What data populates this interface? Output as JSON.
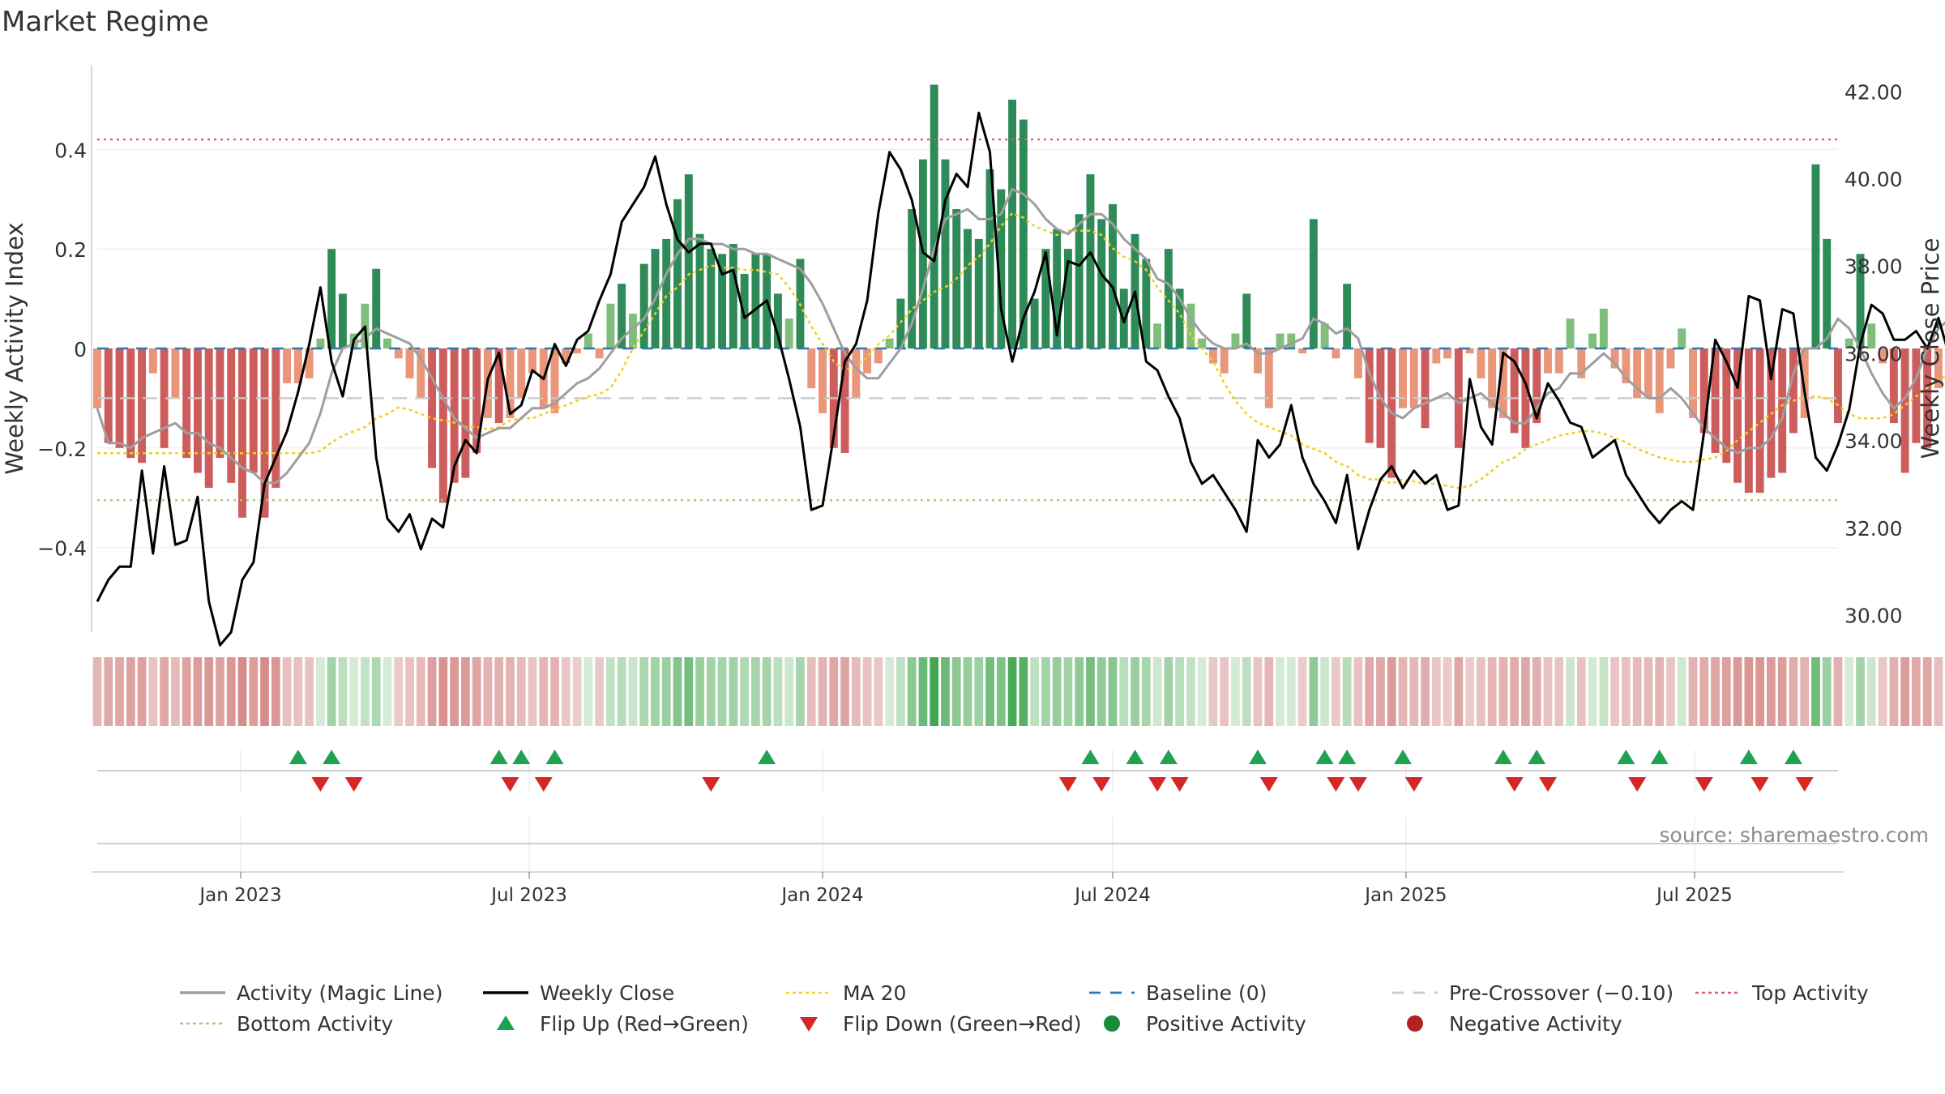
{
  "chart_data": {
    "type": "bar",
    "title": "Market Regime",
    "ylabel": "Weekly Activity Index",
    "ylabel_right": "Weekly Close Price",
    "ylim": [
      -0.57,
      0.57
    ],
    "ylim_right": [
      29.6,
      42.6
    ],
    "yticks": [
      -0.4,
      -0.2,
      0,
      0.2,
      0.4
    ],
    "yticks_right": [
      30,
      32,
      34,
      36,
      38,
      40,
      42
    ],
    "ytick_labels": [
      "−0.4",
      "−0.2",
      "0",
      "0.2",
      "0.4"
    ],
    "ytick_labels_right": [
      "30.00",
      "32.00",
      "34.00",
      "36.00",
      "38.00",
      "40.00",
      "42.00"
    ],
    "x_range": [
      "2022-10-03",
      "2025-09-29"
    ],
    "x_ticks": [
      {
        "date": "2023-01-01",
        "label": "Jan 2023"
      },
      {
        "date": "2023-07-01",
        "label": "Jul 2023"
      },
      {
        "date": "2024-01-01",
        "label": "Jan 2024"
      },
      {
        "date": "2024-07-01",
        "label": "Jul 2024"
      },
      {
        "date": "2025-01-01",
        "label": "Jan 2025"
      },
      {
        "date": "2025-07-01",
        "label": "Jul 2025"
      }
    ],
    "start_date": "2022-10-03",
    "week_step_days": 7,
    "activity_index": [
      -0.12,
      -0.19,
      -0.2,
      -0.22,
      -0.23,
      -0.05,
      -0.2,
      -0.1,
      -0.22,
      -0.25,
      -0.28,
      -0.22,
      -0.27,
      -0.34,
      -0.25,
      -0.34,
      -0.28,
      -0.07,
      -0.07,
      -0.06,
      0.02,
      0.2,
      0.11,
      0.03,
      0.09,
      0.16,
      0.02,
      -0.02,
      -0.06,
      -0.1,
      -0.24,
      -0.31,
      -0.27,
      -0.26,
      -0.21,
      -0.14,
      -0.15,
      -0.14,
      -0.1,
      -0.05,
      -0.12,
      -0.13,
      -0.03,
      -0.01,
      0.03,
      -0.02,
      0.09,
      0.13,
      0.07,
      0.17,
      0.2,
      0.22,
      0.3,
      0.35,
      0.23,
      0.2,
      0.19,
      0.21,
      0.15,
      0.19,
      0.19,
      0.11,
      0.06,
      0.18,
      -0.08,
      -0.13,
      -0.2,
      -0.21,
      -0.1,
      -0.05,
      -0.03,
      0.02,
      0.1,
      0.28,
      0.38,
      0.53,
      0.38,
      0.28,
      0.24,
      0.22,
      0.36,
      0.32,
      0.5,
      0.46,
      0.1,
      0.2,
      0.24,
      0.2,
      0.27,
      0.35,
      0.26,
      0.29,
      0.12,
      0.23,
      0.18,
      0.05,
      0.2,
      0.12,
      0.09,
      0.02,
      -0.03,
      -0.05,
      0.03,
      0.11,
      -0.05,
      -0.12,
      0.03,
      0.03,
      -0.01,
      0.26,
      0.05,
      -0.02,
      0.13,
      -0.06,
      -0.19,
      -0.2,
      -0.26,
      -0.12,
      -0.12,
      -0.16,
      -0.03,
      -0.02,
      -0.2,
      -0.01,
      -0.06,
      -0.12,
      -0.14,
      -0.17,
      -0.2,
      -0.15,
      -0.05,
      -0.05,
      0.06,
      -0.06,
      0.03,
      0.08,
      -0.04,
      -0.07,
      -0.1,
      -0.1,
      -0.13,
      -0.04,
      0.04,
      -0.14,
      -0.17,
      -0.21,
      -0.23,
      -0.27,
      -0.29,
      -0.29,
      -0.26,
      -0.25,
      -0.17,
      -0.14,
      0.37,
      0.22,
      -0.15,
      0.02,
      0.19,
      0.05,
      -0.03,
      -0.15,
      -0.25,
      -0.19,
      -0.2,
      -0.08,
      0.23,
      0.15,
      0.07,
      0.04,
      0.08,
      0.03,
      0.19,
      -0.05,
      0.19,
      -0.05,
      -0.07,
      0.03,
      -0.1,
      -0.12,
      -0.04,
      -0.1,
      -0.11,
      -0.23,
      -0.31,
      -0.17
    ],
    "magic_line": [
      -0.12,
      -0.19,
      -0.19,
      -0.2,
      -0.18,
      -0.17,
      -0.16,
      -0.15,
      -0.17,
      -0.17,
      -0.19,
      -0.2,
      -0.22,
      -0.24,
      -0.25,
      -0.27,
      -0.27,
      -0.25,
      -0.22,
      -0.19,
      -0.13,
      -0.05,
      0.0,
      0.01,
      0.02,
      0.04,
      0.03,
      0.02,
      0.01,
      -0.02,
      -0.06,
      -0.1,
      -0.14,
      -0.16,
      -0.18,
      -0.17,
      -0.16,
      -0.16,
      -0.14,
      -0.12,
      -0.12,
      -0.11,
      -0.09,
      -0.07,
      -0.06,
      -0.04,
      -0.01,
      0.02,
      0.04,
      0.06,
      0.1,
      0.15,
      0.19,
      0.22,
      0.22,
      0.21,
      0.21,
      0.2,
      0.2,
      0.19,
      0.19,
      0.18,
      0.17,
      0.16,
      0.13,
      0.09,
      0.04,
      -0.01,
      -0.04,
      -0.06,
      -0.06,
      -0.03,
      0.0,
      0.05,
      0.12,
      0.2,
      0.26,
      0.27,
      0.28,
      0.26,
      0.26,
      0.27,
      0.32,
      0.31,
      0.29,
      0.26,
      0.24,
      0.23,
      0.25,
      0.27,
      0.27,
      0.25,
      0.22,
      0.2,
      0.18,
      0.14,
      0.13,
      0.1,
      0.06,
      0.03,
      0.01,
      0.0,
      0.0,
      0.01,
      -0.01,
      -0.01,
      0.0,
      0.01,
      0.02,
      0.06,
      0.05,
      0.03,
      0.04,
      0.02,
      -0.05,
      -0.1,
      -0.13,
      -0.14,
      -0.12,
      -0.11,
      -0.1,
      -0.09,
      -0.11,
      -0.1,
      -0.09,
      -0.11,
      -0.13,
      -0.15,
      -0.15,
      -0.12,
      -0.09,
      -0.08,
      -0.05,
      -0.05,
      -0.03,
      -0.01,
      -0.03,
      -0.06,
      -0.08,
      -0.1,
      -0.1,
      -0.08,
      -0.1,
      -0.13,
      -0.16,
      -0.18,
      -0.2,
      -0.21,
      -0.2,
      -0.2,
      -0.18,
      -0.14,
      -0.05,
      0.0,
      0.0,
      0.02,
      0.06,
      0.04,
      0.0,
      -0.05,
      -0.09,
      -0.12,
      -0.1,
      -0.06,
      0.0,
      0.04,
      0.06,
      0.05,
      0.05,
      0.06,
      0.05,
      0.07,
      0.04,
      0.02,
      0.0,
      -0.02,
      -0.04,
      -0.06,
      -0.06,
      -0.07,
      -0.09,
      -0.13,
      -0.18,
      -0.21
    ],
    "weekly_close": [
      30.3,
      30.8,
      31.1,
      31.1,
      33.3,
      31.4,
      33.4,
      31.6,
      31.7,
      32.7,
      30.3,
      29.3,
      29.6,
      30.8,
      31.2,
      33,
      33.6,
      34.2,
      35.1,
      36.2,
      37.5,
      35.8,
      35,
      36.3,
      36.6,
      33.6,
      32.2,
      31.9,
      32.3,
      31.5,
      32.2,
      32,
      33.4,
      34,
      33.7,
      35.4,
      36,
      34.6,
      34.8,
      35.6,
      35.4,
      36.2,
      35.7,
      36.3,
      36.5,
      37.2,
      37.8,
      39,
      39.4,
      39.8,
      40.5,
      39.4,
      38.6,
      38.3,
      38.5,
      38.5,
      37.8,
      37.9,
      36.8,
      37,
      37.2,
      36.4,
      35.4,
      34.3,
      32.4,
      32.5,
      34.1,
      35.8,
      36.2,
      37.2,
      39.2,
      40.6,
      40.2,
      39.5,
      38.3,
      38.1,
      39.5,
      40.1,
      39.8,
      41.5,
      40.6,
      37,
      35.8,
      36.8,
      37.4,
      38.3,
      36.4,
      38.1,
      38,
      38.3,
      37.8,
      37.5,
      36.7,
      37.4,
      35.8,
      35.6,
      35,
      34.5,
      33.5,
      33,
      33.2,
      32.8,
      32.4,
      31.9,
      34,
      33.6,
      33.9,
      34.8,
      33.6,
      33,
      32.6,
      32.1,
      33.2,
      31.5,
      32.4,
      33.1,
      33.4,
      32.9,
      33.3,
      33,
      33.2,
      32.4,
      32.5,
      35.4,
      34.3,
      33.9,
      36,
      35.8,
      35.3,
      34.5,
      35.3,
      34.9,
      34.4,
      34.3,
      33.6,
      33.8,
      34,
      33.2,
      32.8,
      32.4,
      32.1,
      32.4,
      32.6,
      32.4,
      34.2,
      36.3,
      35.8,
      35.2,
      37.3,
      37.2,
      35.4,
      37,
      36.9,
      35.1,
      33.6,
      33.3,
      33.9,
      34.7,
      36.2,
      37.1,
      36.9,
      36.3,
      36.3,
      36.5,
      36.1,
      36.8,
      35.9,
      37.5,
      34.8,
      33.4,
      33,
      34.9,
      35.4,
      34.7,
      35.3,
      36.1,
      35.8,
      35.4,
      34.6,
      33.6,
      33.7
    ],
    "ma20": [
      33.7,
      33.7,
      33.7,
      33.7,
      33.7,
      33.7,
      33.7,
      33.7,
      33.7,
      33.7,
      33.7,
      33.7,
      33.7,
      33.7,
      33.7,
      33.7,
      33.7,
      33.7,
      33.7,
      33.7,
      33.75,
      33.95,
      34.1,
      34.2,
      34.3,
      34.5,
      34.6,
      34.75,
      34.7,
      34.6,
      34.5,
      34.45,
      34.4,
      34.3,
      34.3,
      34.25,
      34.3,
      34.45,
      34.5,
      34.5,
      34.6,
      34.7,
      34.8,
      34.9,
      35,
      35.05,
      35.2,
      35.6,
      36.1,
      36.5,
      36.9,
      37.3,
      37.5,
      37.8,
      37.9,
      38,
      37.95,
      37.95,
      37.9,
      37.9,
      37.85,
      37.8,
      37.5,
      37.1,
      36.6,
      36.2,
      35.8,
      35.6,
      35.7,
      35.9,
      36.2,
      36.4,
      36.7,
      37,
      37.2,
      37.4,
      37.5,
      37.7,
      38,
      38.2,
      38.5,
      38.9,
      39.2,
      39.1,
      38.9,
      38.8,
      38.7,
      38.8,
      38.8,
      38.8,
      38.7,
      38.4,
      38.2,
      38.1,
      37.9,
      37.5,
      37.2,
      36.9,
      36.4,
      36.1,
      35.8,
      35.3,
      34.9,
      34.6,
      34.4,
      34.3,
      34.2,
      34.1,
      33.9,
      33.8,
      33.7,
      33.5,
      33.4,
      33.2,
      33.1,
      33.1,
      33.0,
      33.1,
      33.05,
      33.0,
      33.0,
      32.95,
      32.9,
      32.95,
      33.1,
      33.3,
      33.5,
      33.6,
      33.8,
      33.9,
      34,
      34.1,
      34.15,
      34.2,
      34.2,
      34.15,
      34.05,
      33.95,
      33.8,
      33.7,
      33.6,
      33.55,
      33.5,
      33.5,
      33.55,
      33.6,
      33.75,
      34,
      34.2,
      34.4,
      34.6,
      34.8,
      34.9,
      35.0,
      35.0,
      34.95,
      34.8,
      34.6,
      34.5,
      34.5,
      34.5,
      34.6,
      34.8,
      35.0,
      35.2,
      35.4,
      35.5,
      35.6,
      35.7,
      35.9,
      36.0,
      35.9,
      35.7,
      35.5,
      35.5,
      35.4,
      35.3,
      35.4,
      35.5,
      35.5,
      35.4,
      35.3,
      35.1
    ],
    "levels": {
      "top": 0.42,
      "bottom": -0.305,
      "pre_crossover": -0.1,
      "baseline": 0
    },
    "flip_up_weeks": [
      18,
      21,
      36,
      38,
      41,
      60,
      89,
      93,
      96,
      104,
      110,
      112,
      117,
      126,
      129,
      137,
      140,
      148,
      152
    ],
    "flip_down_weeks": [
      20,
      23,
      37,
      40,
      55,
      87,
      90,
      95,
      97,
      105,
      111,
      113,
      118,
      127,
      130,
      138,
      144,
      149,
      153
    ],
    "legend": [
      {
        "label": "Activity (Magic Line)",
        "style": "solid",
        "color": "#9e9e9e"
      },
      {
        "label": "Weekly Close",
        "style": "solid",
        "color": "#000000"
      },
      {
        "label": "MA 20",
        "style": "dotted",
        "color": "#f0d020"
      },
      {
        "label": "Baseline (0)",
        "style": "dashed",
        "color": "#2f77b4"
      },
      {
        "label": "Pre-Crossover (−0.10)",
        "style": "dashed",
        "color": "#c8c8c8"
      },
      {
        "label": "Top Activity",
        "style": "dotted",
        "color": "#d65f6e"
      },
      {
        "label": "Bottom Activity",
        "style": "dotted",
        "color": "#98d06e"
      },
      {
        "label": "Flip Up (Red→Green)",
        "style": "triangle-up",
        "color": "#21a152"
      },
      {
        "label": "Flip Down (Green→Red)",
        "style": "triangle-down",
        "color": "#d62728"
      },
      {
        "label": "Positive Activity",
        "style": "circle",
        "color": "#1a8a3a"
      },
      {
        "label": "Negative Activity",
        "style": "circle",
        "color": "#b22222"
      }
    ],
    "legend_position": "bottom",
    "grid": true,
    "source": "source: sharemaestro.com",
    "colors": {
      "strong_positive": "#2e8b57",
      "weak_positive": "#7fbf7b",
      "strong_negative": "#cd5c5c",
      "weak_negative": "#e9967a"
    }
  }
}
